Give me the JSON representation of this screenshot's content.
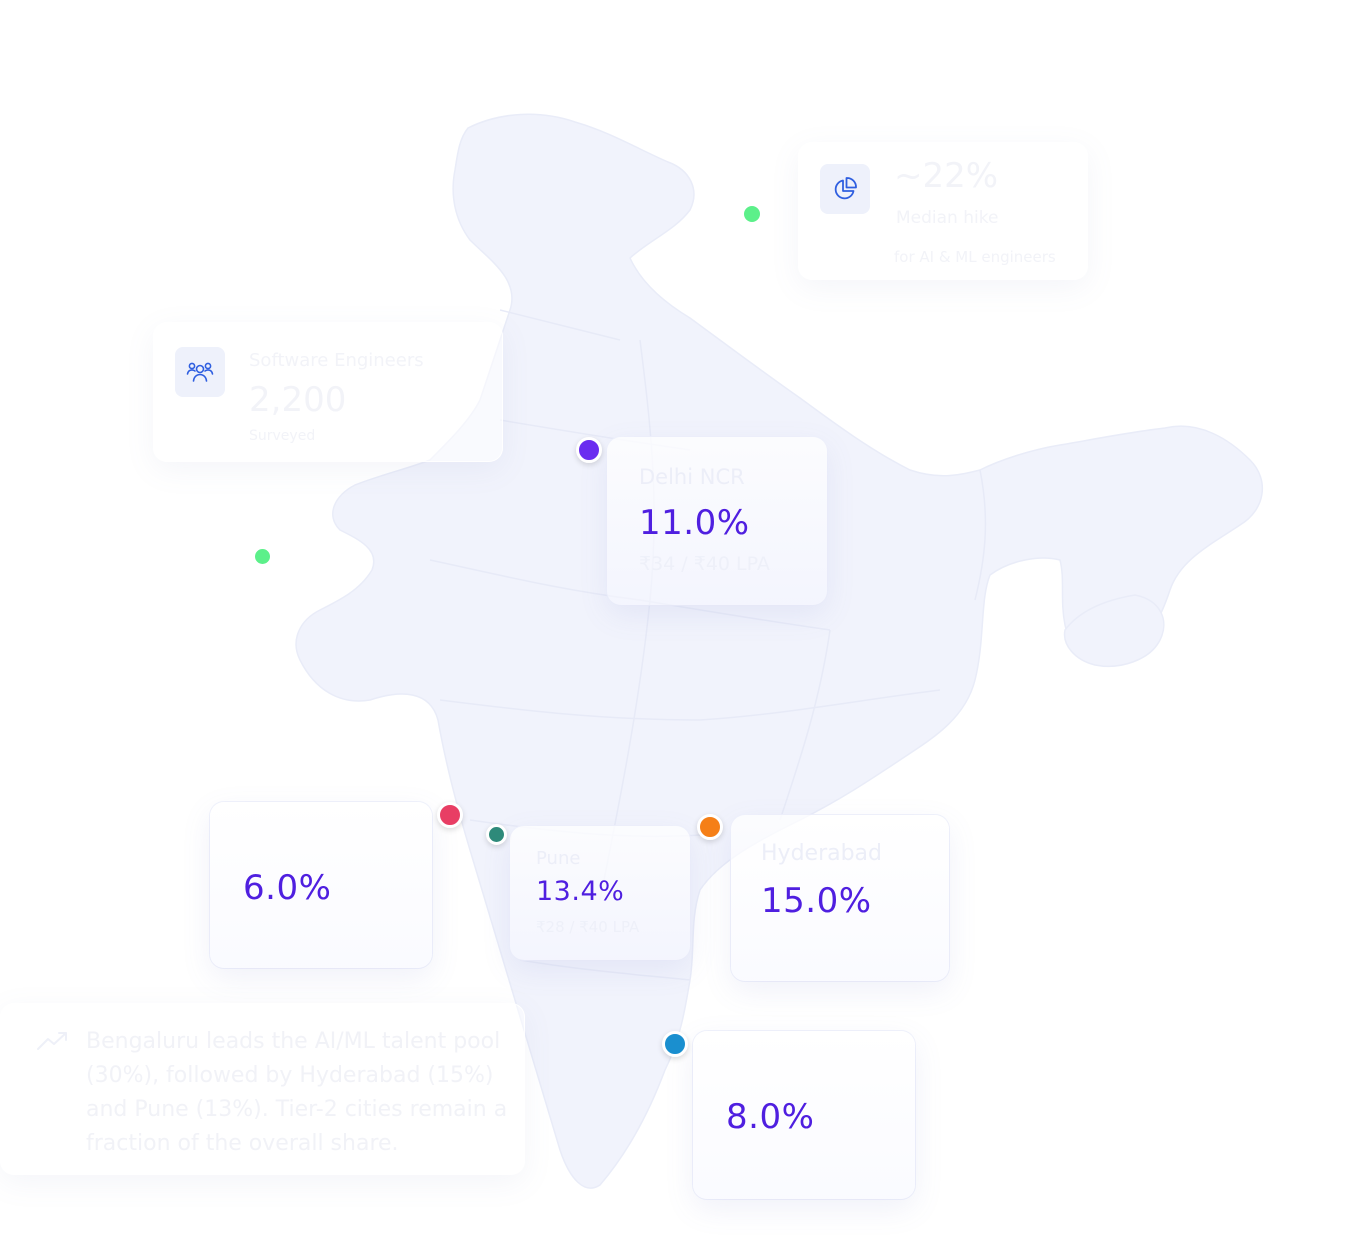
{
  "colors": {
    "map_fill": "#f1f3fc",
    "accent": "#4f1fe0",
    "icon_blue": "#2f5fe0",
    "dot_green": "#5cf08a",
    "dot_purple": "#6a2cf0",
    "dot_pink": "#e83e64",
    "dot_teal": "#2e8a7a",
    "dot_orange": "#f57f17",
    "dot_blue": "#1a8fcf"
  },
  "stat_cards": {
    "pie": {
      "icon": "pie-chart-icon",
      "value": "~22%",
      "label": "Median hike",
      "sublabel": "for AI & ML engineers"
    },
    "people": {
      "icon": "users-icon",
      "title": "Software Engineers",
      "value": "2,200",
      "sublabel": "Surveyed"
    }
  },
  "cities": {
    "delhi": {
      "name": "Delhi NCR",
      "growth": "11.0%",
      "salary": "₹34 / ₹40 LPA"
    },
    "mumbai": {
      "growth": "6.0%"
    },
    "pune": {
      "name": "Pune",
      "growth": "13.4%",
      "salary": "₹28 / ₹40 LPA"
    },
    "hyderabad": {
      "name": "Hyderabad",
      "growth": "15.0%"
    },
    "bengaluru": {
      "growth": "8.0%"
    }
  },
  "insight": {
    "icon": "trend-up-icon",
    "lines": [
      "Bengaluru leads the AI/ML talent pool",
      "(30%), followed by Hyderabad (15%)",
      "and Pune (13%). Tier-2 cities remain a",
      "fraction of the overall share."
    ]
  }
}
